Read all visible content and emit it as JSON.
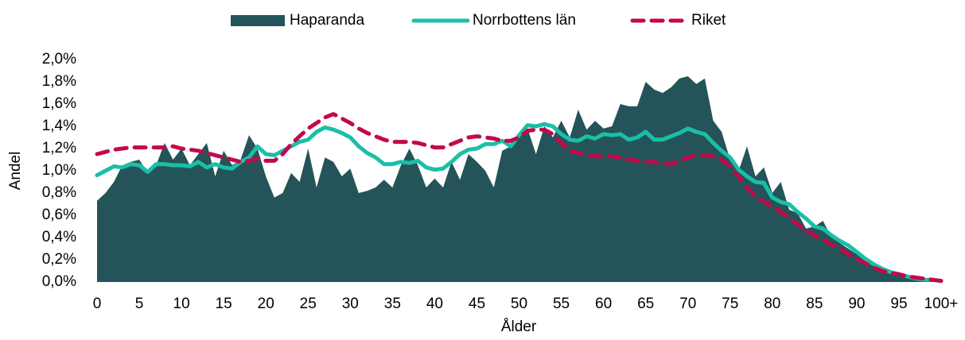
{
  "chart_data": {
    "type": "line",
    "ylabel": "Andel",
    "xlabel": "Ålder",
    "categories": [
      "0",
      null,
      null,
      null,
      null,
      "5",
      null,
      null,
      null,
      null,
      "10",
      null,
      null,
      null,
      null,
      "15",
      null,
      null,
      null,
      null,
      "20",
      null,
      null,
      null,
      null,
      "25",
      null,
      null,
      null,
      null,
      "30",
      null,
      null,
      null,
      null,
      "35",
      null,
      null,
      null,
      null,
      "40",
      null,
      null,
      null,
      null,
      "45",
      null,
      null,
      null,
      null,
      "50",
      null,
      null,
      null,
      null,
      "55",
      null,
      null,
      null,
      null,
      "60",
      null,
      null,
      null,
      null,
      "65",
      null,
      null,
      null,
      null,
      "70",
      null,
      null,
      null,
      null,
      "75",
      null,
      null,
      null,
      null,
      "80",
      null,
      null,
      null,
      null,
      "85",
      null,
      null,
      null,
      null,
      "90",
      null,
      null,
      null,
      null,
      "95",
      null,
      null,
      null,
      null,
      "100+"
    ],
    "ylim": [
      0,
      2
    ],
    "yticks": [
      {
        "value": 0,
        "label": "0,0%"
      },
      {
        "value": 0.2,
        "label": "0,2%"
      },
      {
        "value": 0.4,
        "label": "0,4%"
      },
      {
        "value": 0.6,
        "label": "0,6%"
      },
      {
        "value": 0.8,
        "label": "0,8%"
      },
      {
        "value": 1.0,
        "label": "1,0%"
      },
      {
        "value": 1.2,
        "label": "1,2%"
      },
      {
        "value": 1.4,
        "label": "1,4%"
      },
      {
        "value": 1.6,
        "label": "1,6%"
      },
      {
        "value": 1.8,
        "label": "1,8%"
      },
      {
        "value": 2.0,
        "label": "2,0%"
      }
    ],
    "legend": "top",
    "series": [
      {
        "name": "Haparanda",
        "color": "#245459",
        "style": "area",
        "values": [
          0.73,
          0.8,
          0.9,
          1.05,
          1.08,
          1.1,
          0.98,
          1.05,
          1.25,
          1.1,
          1.2,
          1.05,
          1.15,
          1.25,
          0.95,
          1.18,
          1.05,
          1.1,
          1.32,
          1.2,
          0.95,
          0.76,
          0.8,
          0.98,
          0.9,
          1.2,
          0.85,
          1.12,
          1.08,
          0.95,
          1.02,
          0.8,
          0.82,
          0.85,
          0.92,
          0.85,
          1.05,
          1.2,
          1.05,
          0.85,
          0.93,
          0.85,
          1.08,
          0.92,
          1.15,
          1.08,
          1.0,
          0.85,
          1.18,
          1.22,
          1.3,
          1.38,
          1.15,
          1.4,
          1.3,
          1.45,
          1.3,
          1.55,
          1.37,
          1.45,
          1.38,
          1.4,
          1.6,
          1.58,
          1.58,
          1.8,
          1.73,
          1.7,
          1.75,
          1.83,
          1.85,
          1.78,
          1.83,
          1.45,
          1.35,
          1.1,
          1.0,
          1.22,
          0.95,
          1.03,
          0.8,
          0.9,
          0.65,
          0.62,
          0.48,
          0.5,
          0.55,
          0.4,
          0.35,
          0.3,
          0.25,
          0.2,
          0.15,
          0.12,
          0.09,
          0.07,
          0.05,
          0.04,
          0.03,
          0.02,
          0.02
        ]
      },
      {
        "name": "Norrbottens län",
        "color": "#1abfa8",
        "style": "solid",
        "values": [
          0.96,
          1.0,
          1.04,
          1.03,
          1.06,
          1.05,
          0.99,
          1.06,
          1.06,
          1.05,
          1.05,
          1.04,
          1.08,
          1.03,
          1.06,
          1.03,
          1.02,
          1.08,
          1.12,
          1.22,
          1.15,
          1.14,
          1.18,
          1.22,
          1.26,
          1.28,
          1.35,
          1.39,
          1.37,
          1.34,
          1.3,
          1.22,
          1.16,
          1.12,
          1.06,
          1.06,
          1.08,
          1.07,
          1.09,
          1.03,
          1.01,
          1.02,
          1.08,
          1.15,
          1.19,
          1.2,
          1.24,
          1.24,
          1.27,
          1.22,
          1.32,
          1.41,
          1.4,
          1.42,
          1.4,
          1.33,
          1.28,
          1.27,
          1.31,
          1.29,
          1.33,
          1.32,
          1.33,
          1.28,
          1.3,
          1.35,
          1.28,
          1.28,
          1.31,
          1.34,
          1.38,
          1.35,
          1.33,
          1.25,
          1.18,
          1.12,
          1.01,
          0.95,
          0.9,
          0.89,
          0.76,
          0.72,
          0.7,
          0.63,
          0.57,
          0.5,
          0.48,
          0.42,
          0.37,
          0.33,
          0.27,
          0.21,
          0.16,
          0.12,
          0.09,
          0.07,
          0.05,
          0.03,
          0.02,
          0.02,
          0.01
        ]
      },
      {
        "name": "Riket",
        "color": "#c3094a",
        "style": "dashed",
        "values": [
          1.15,
          1.17,
          1.19,
          1.2,
          1.21,
          1.21,
          1.21,
          1.21,
          1.21,
          1.22,
          1.2,
          1.19,
          1.18,
          1.16,
          1.14,
          1.12,
          1.1,
          1.08,
          1.09,
          1.11,
          1.09,
          1.09,
          1.15,
          1.24,
          1.31,
          1.38,
          1.43,
          1.48,
          1.51,
          1.47,
          1.43,
          1.38,
          1.34,
          1.31,
          1.28,
          1.26,
          1.26,
          1.26,
          1.25,
          1.23,
          1.21,
          1.21,
          1.24,
          1.27,
          1.3,
          1.31,
          1.3,
          1.29,
          1.27,
          1.27,
          1.3,
          1.36,
          1.37,
          1.37,
          1.33,
          1.25,
          1.18,
          1.16,
          1.14,
          1.13,
          1.13,
          1.13,
          1.12,
          1.1,
          1.09,
          1.08,
          1.08,
          1.06,
          1.06,
          1.09,
          1.12,
          1.14,
          1.14,
          1.13,
          1.1,
          1.04,
          0.95,
          0.85,
          0.77,
          0.72,
          0.68,
          0.63,
          0.58,
          0.52,
          0.46,
          0.42,
          0.38,
          0.34,
          0.3,
          0.25,
          0.21,
          0.17,
          0.13,
          0.1,
          0.08,
          0.07,
          0.05,
          0.04,
          0.03,
          0.02,
          0.01
        ]
      }
    ]
  }
}
